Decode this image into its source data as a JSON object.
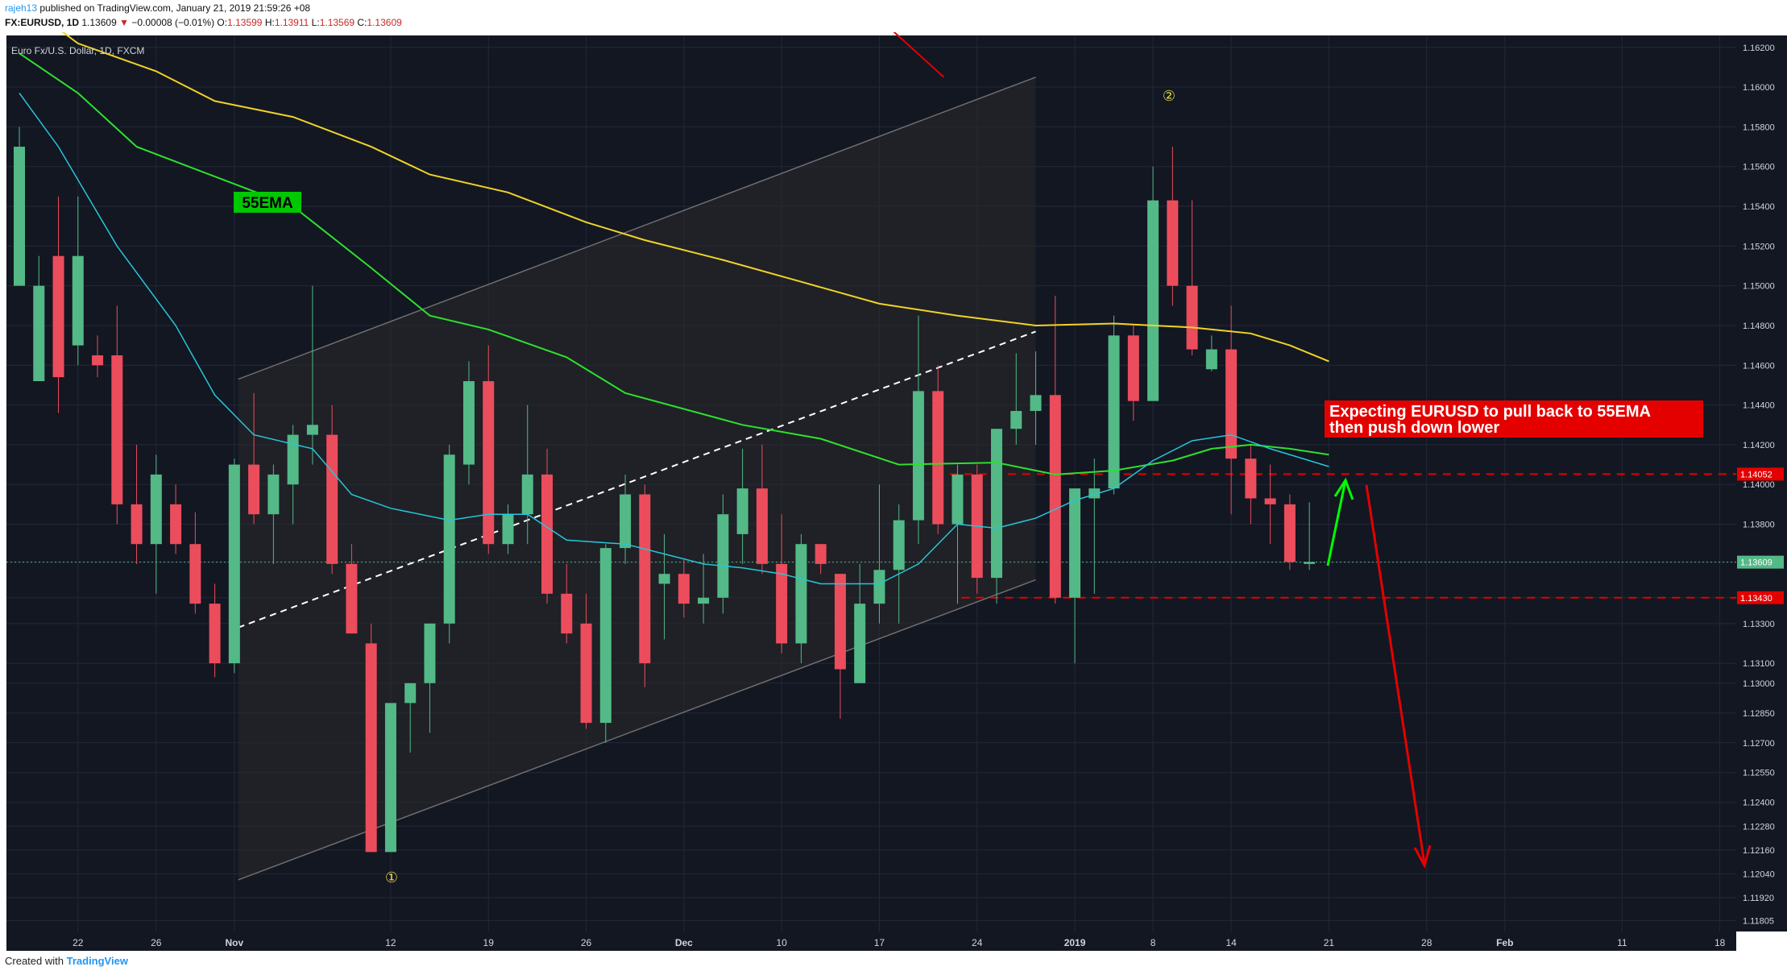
{
  "header": {
    "user": "rajeh13",
    "published": " published on TradingView.com, January 21, 2019 21:59:26 +08",
    "symbol": "FX:EURUSD, 1D",
    "last": "1.13609",
    "arrow": "▼",
    "change": "−0.00008 (−0.01%)",
    "o_label": "O:",
    "o": "1.13599",
    "h_label": "H:",
    "h": "1.13911",
    "l_label": "L:",
    "l": "1.13569",
    "c_label": "C:",
    "c": "1.13609"
  },
  "footer": {
    "created": "Created with",
    "brand": "TradingView"
  },
  "colors": {
    "background": "#131722",
    "up": "#53b987",
    "down": "#eb4d5c",
    "ema_yellow": "#f1d327",
    "ema_green": "#2ee02e",
    "ema_cyan": "#26c6da",
    "annotation_red": "#e50000",
    "annotation_green": "#00ff00"
  },
  "chart_data": {
    "type": "candlestick",
    "title": "Euro Fx/U.S. Dollar, 1D, FXCM",
    "ylim": [
      1.1175,
      1.1626
    ],
    "y_ticks": [
      "1.16200",
      "1.16000",
      "1.15800",
      "1.15600",
      "1.15400",
      "1.15200",
      "1.15000",
      "1.14800",
      "1.14600",
      "1.14400",
      "1.14200",
      "1.14000",
      "1.13800",
      "1.13609",
      "1.13430",
      "1.13300",
      "1.13100",
      "1.13000",
      "1.12850",
      "1.12700",
      "1.12550",
      "1.12400",
      "1.12280",
      "1.12160",
      "1.12040",
      "1.11920",
      "1.11805"
    ],
    "x_ticks": [
      {
        "label": "22",
        "i": 3
      },
      {
        "label": "26",
        "i": 7
      },
      {
        "label": "Nov",
        "i": 11
      },
      {
        "label": "12",
        "i": 19
      },
      {
        "label": "19",
        "i": 24
      },
      {
        "label": "26",
        "i": 29
      },
      {
        "label": "Dec",
        "i": 34
      },
      {
        "label": "10",
        "i": 39
      },
      {
        "label": "17",
        "i": 44
      },
      {
        "label": "24",
        "i": 49
      },
      {
        "label": "2019",
        "i": 54
      },
      {
        "label": "8",
        "i": 58
      },
      {
        "label": "14",
        "i": 62
      },
      {
        "label": "21",
        "i": 67
      },
      {
        "label": "28",
        "i": 72
      },
      {
        "label": "Feb",
        "i": 76
      },
      {
        "label": "11",
        "i": 82
      },
      {
        "label": "18",
        "i": 87
      }
    ],
    "candles": [
      [
        1.15,
        1.158,
        1.15,
        1.157
      ],
      [
        1.1452,
        1.1515,
        1.1452,
        1.15
      ],
      [
        1.1515,
        1.1545,
        1.1436,
        1.1454
      ],
      [
        1.147,
        1.1545,
        1.146,
        1.1515
      ],
      [
        1.1465,
        1.1475,
        1.1454,
        1.146
      ],
      [
        1.1465,
        1.149,
        1.138,
        1.139
      ],
      [
        1.139,
        1.142,
        1.136,
        1.137
      ],
      [
        1.137,
        1.1415,
        1.1345,
        1.1405
      ],
      [
        1.139,
        1.14,
        1.1365,
        1.137
      ],
      [
        1.137,
        1.1386,
        1.1335,
        1.134
      ],
      [
        1.134,
        1.135,
        1.1303,
        1.131
      ],
      [
        1.131,
        1.1413,
        1.1305,
        1.141
      ],
      [
        1.141,
        1.1446,
        1.138,
        1.1385
      ],
      [
        1.1385,
        1.141,
        1.136,
        1.1405
      ],
      [
        1.14,
        1.143,
        1.138,
        1.1425
      ],
      [
        1.1425,
        1.15,
        1.141,
        1.143
      ],
      [
        1.1425,
        1.144,
        1.1355,
        1.136
      ],
      [
        1.136,
        1.137,
        1.1325,
        1.1325
      ],
      [
        1.132,
        1.133,
        1.1215,
        1.1215
      ],
      [
        1.1215,
        1.129,
        1.1215,
        1.129
      ],
      [
        1.129,
        1.13,
        1.1265,
        1.13
      ],
      [
        1.13,
        1.133,
        1.1275,
        1.133
      ],
      [
        1.133,
        1.142,
        1.132,
        1.1415
      ],
      [
        1.141,
        1.1462,
        1.14,
        1.1452
      ],
      [
        1.1452,
        1.147,
        1.1365,
        1.137
      ],
      [
        1.137,
        1.139,
        1.1365,
        1.1385
      ],
      [
        1.1385,
        1.144,
        1.137,
        1.1405
      ],
      [
        1.1405,
        1.1418,
        1.134,
        1.1345
      ],
      [
        1.1345,
        1.136,
        1.132,
        1.1325
      ],
      [
        1.133,
        1.1345,
        1.1277,
        1.128
      ],
      [
        1.128,
        1.137,
        1.127,
        1.1368
      ],
      [
        1.1368,
        1.1405,
        1.136,
        1.1395
      ],
      [
        1.1395,
        1.14,
        1.1298,
        1.131
      ],
      [
        1.135,
        1.1375,
        1.1322,
        1.1355
      ],
      [
        1.1355,
        1.1362,
        1.1333,
        1.134
      ],
      [
        1.134,
        1.1365,
        1.133,
        1.1343
      ],
      [
        1.1343,
        1.1395,
        1.1335,
        1.1385
      ],
      [
        1.1375,
        1.1418,
        1.136,
        1.1398
      ],
      [
        1.1398,
        1.142,
        1.1355,
        1.136
      ],
      [
        1.136,
        1.1385,
        1.1315,
        1.132
      ],
      [
        1.132,
        1.1375,
        1.131,
        1.137
      ],
      [
        1.137,
        1.137,
        1.1355,
        1.136
      ],
      [
        1.1355,
        1.1355,
        1.1282,
        1.1307
      ],
      [
        1.13,
        1.136,
        1.13,
        1.134
      ],
      [
        1.134,
        1.14,
        1.133,
        1.1357
      ],
      [
        1.1357,
        1.139,
        1.133,
        1.1382
      ],
      [
        1.1382,
        1.1485,
        1.137,
        1.1447
      ],
      [
        1.1447,
        1.146,
        1.1375,
        1.138
      ],
      [
        1.138,
        1.141,
        1.134,
        1.1405
      ],
      [
        1.1405,
        1.141,
        1.1345,
        1.1353
      ],
      [
        1.1353,
        1.1428,
        1.134,
        1.1428
      ],
      [
        1.1428,
        1.1466,
        1.142,
        1.1437
      ],
      [
        1.1437,
        1.1467,
        1.142,
        1.1445
      ],
      [
        1.1445,
        1.1495,
        1.134,
        1.1343
      ],
      [
        1.1343,
        1.1398,
        1.131,
        1.1398
      ],
      [
        1.1393,
        1.1413,
        1.1345,
        1.1398
      ],
      [
        1.1398,
        1.1485,
        1.1395,
        1.1475
      ],
      [
        1.1475,
        1.148,
        1.1432,
        1.1442
      ],
      [
        1.1442,
        1.156,
        1.1442,
        1.1543
      ],
      [
        1.1543,
        1.157,
        1.149,
        1.15
      ],
      [
        1.15,
        1.1543,
        1.1465,
        1.1468
      ],
      [
        1.1458,
        1.1475,
        1.1457,
        1.1468
      ],
      [
        1.1468,
        1.149,
        1.1385,
        1.1413
      ],
      [
        1.1413,
        1.142,
        1.138,
        1.1393
      ],
      [
        1.1393,
        1.141,
        1.137,
        1.139
      ],
      [
        1.139,
        1.1395,
        1.1357,
        1.1361
      ],
      [
        1.136,
        1.1391,
        1.1357,
        1.1361
      ]
    ],
    "ema_yellow": [
      [
        0,
        1.1644
      ],
      [
        3,
        1.1622
      ],
      [
        7,
        1.1608
      ],
      [
        10,
        1.1593
      ],
      [
        14,
        1.1585
      ],
      [
        18,
        1.157
      ],
      [
        21,
        1.1556
      ],
      [
        25,
        1.1547
      ],
      [
        29,
        1.1532
      ],
      [
        32,
        1.1523
      ],
      [
        36,
        1.1513
      ],
      [
        40,
        1.1502
      ],
      [
        44,
        1.1491
      ],
      [
        48,
        1.1485
      ],
      [
        52,
        1.148
      ],
      [
        56,
        1.1481
      ],
      [
        60,
        1.1479
      ],
      [
        63,
        1.1476
      ],
      [
        65,
        1.147
      ],
      [
        67,
        1.1462
      ]
    ],
    "ema_green": [
      [
        0,
        1.1617
      ],
      [
        3,
        1.1597
      ],
      [
        6,
        1.157
      ],
      [
        10,
        1.1555
      ],
      [
        14,
        1.154
      ],
      [
        18,
        1.1509
      ],
      [
        21,
        1.1485
      ],
      [
        24,
        1.1478
      ],
      [
        28,
        1.1464
      ],
      [
        31,
        1.1446
      ],
      [
        34,
        1.1438
      ],
      [
        37,
        1.143
      ],
      [
        41,
        1.1423
      ],
      [
        45,
        1.141
      ],
      [
        50,
        1.1411
      ],
      [
        53,
        1.1405
      ],
      [
        56,
        1.1407
      ],
      [
        59,
        1.1412
      ],
      [
        61,
        1.1418
      ],
      [
        63,
        1.142
      ],
      [
        65,
        1.1418
      ],
      [
        67,
        1.1415
      ]
    ],
    "ema_cyan": [
      [
        0,
        1.1597
      ],
      [
        2,
        1.157
      ],
      [
        5,
        1.152
      ],
      [
        8,
        1.148
      ],
      [
        10,
        1.1445
      ],
      [
        12,
        1.1425
      ],
      [
        15,
        1.1418
      ],
      [
        17,
        1.1395
      ],
      [
        19,
        1.1388
      ],
      [
        22,
        1.1382
      ],
      [
        24,
        1.1385
      ],
      [
        26,
        1.1385
      ],
      [
        28,
        1.1372
      ],
      [
        31,
        1.137
      ],
      [
        33,
        1.1365
      ],
      [
        35,
        1.136
      ],
      [
        37,
        1.1358
      ],
      [
        39,
        1.1355
      ],
      [
        41,
        1.135
      ],
      [
        44,
        1.135
      ],
      [
        46,
        1.136
      ],
      [
        48,
        1.138
      ],
      [
        50,
        1.1378
      ],
      [
        52,
        1.1383
      ],
      [
        54,
        1.1392
      ],
      [
        56,
        1.1398
      ],
      [
        58,
        1.1412
      ],
      [
        60,
        1.1422
      ],
      [
        62,
        1.1425
      ],
      [
        64,
        1.1418
      ],
      [
        66,
        1.1412
      ],
      [
        67,
        1.1409
      ]
    ],
    "ema_label": "55EMA",
    "annotation": [
      "Expecting EURUSD to pull back to 55EMA",
      "then push down lower"
    ],
    "wave_labels": [
      "②",
      "①"
    ],
    "price_labels": [
      {
        "text": "1.14052",
        "price": 1.14052,
        "color": "#e50000"
      },
      {
        "text": "1.13609",
        "price": 1.13609,
        "color": "#53b987"
      },
      {
        "text": "1.13430",
        "price": 1.1343,
        "color": "#e50000"
      }
    ]
  }
}
